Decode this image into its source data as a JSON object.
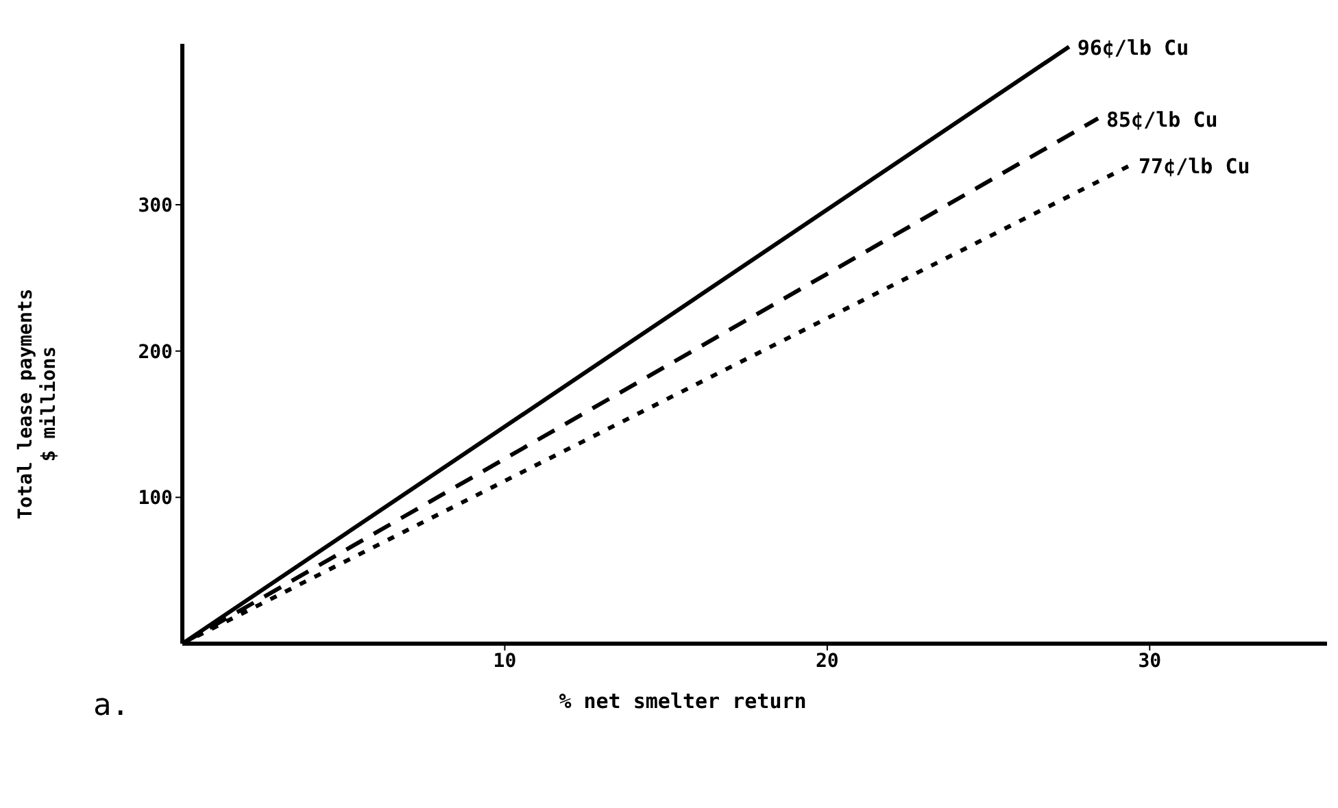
{
  "chart_data": {
    "type": "line",
    "xlabel": "% net smelter return",
    "ylabel": "Total lease payments\n$ millions",
    "annotations": [
      "a."
    ],
    "xlim": [
      0,
      35.5
    ],
    "xticks": [
      10,
      20,
      30
    ],
    "ylim": [
      0,
      410
    ],
    "yticks": [
      100,
      200,
      300
    ],
    "grid": false,
    "legend": false,
    "marker": "none",
    "series": [
      {
        "name": "96¢/lb Cu",
        "color": "#000000",
        "line_style": "solid",
        "x": [
          0,
          27.5
        ],
        "values": [
          0,
          408
        ]
      },
      {
        "name": "85¢/lb Cu",
        "color": "#000000",
        "line_style": "dashed",
        "x": [
          0,
          28.4
        ],
        "values": [
          0,
          359
        ]
      },
      {
        "name": "77¢/lb Cu",
        "color": "#000000",
        "line_style": "dotted",
        "x": [
          0,
          29.4
        ],
        "values": [
          0,
          327
        ]
      }
    ]
  }
}
